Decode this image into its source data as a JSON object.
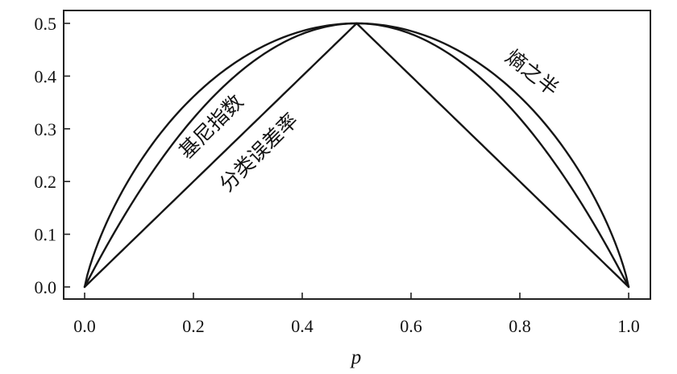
{
  "chart_data": {
    "type": "line",
    "title": "",
    "xlabel": "p",
    "ylabel": "",
    "xlim": [
      0.0,
      1.0
    ],
    "ylim": [
      0.0,
      0.5
    ],
    "xticks": [
      "0.0",
      "0.2",
      "0.4",
      "0.6",
      "0.8",
      "1.0"
    ],
    "yticks": [
      "0.0",
      "0.1",
      "0.2",
      "0.3",
      "0.4",
      "0.5"
    ],
    "grid": false,
    "legend": "none",
    "series": [
      {
        "name": "熵之半",
        "x": [
          0.0,
          0.01,
          0.05,
          0.1,
          0.2,
          0.3,
          0.4,
          0.5,
          0.6,
          0.7,
          0.8,
          0.9,
          0.95,
          0.99,
          1.0
        ],
        "y": [
          0.0,
          0.04,
          0.143,
          0.234,
          0.361,
          0.441,
          0.485,
          0.5,
          0.485,
          0.441,
          0.361,
          0.234,
          0.143,
          0.04,
          0.0
        ]
      },
      {
        "name": "基尼指数",
        "x": [
          0.0,
          0.05,
          0.1,
          0.2,
          0.3,
          0.4,
          0.5,
          0.6,
          0.7,
          0.8,
          0.9,
          0.95,
          1.0
        ],
        "y": [
          0.0,
          0.095,
          0.18,
          0.32,
          0.42,
          0.48,
          0.5,
          0.48,
          0.42,
          0.32,
          0.18,
          0.095,
          0.0
        ]
      },
      {
        "name": "分类误差率",
        "x": [
          0.0,
          0.5,
          1.0
        ],
        "y": [
          0.0,
          0.5,
          0.0
        ]
      }
    ],
    "annotations": [
      {
        "text": "基尼指数",
        "series": "基尼指数"
      },
      {
        "text": "分类误差率",
        "series": "分类误差率"
      },
      {
        "text": "熵之半",
        "series": "熵之半"
      }
    ]
  }
}
